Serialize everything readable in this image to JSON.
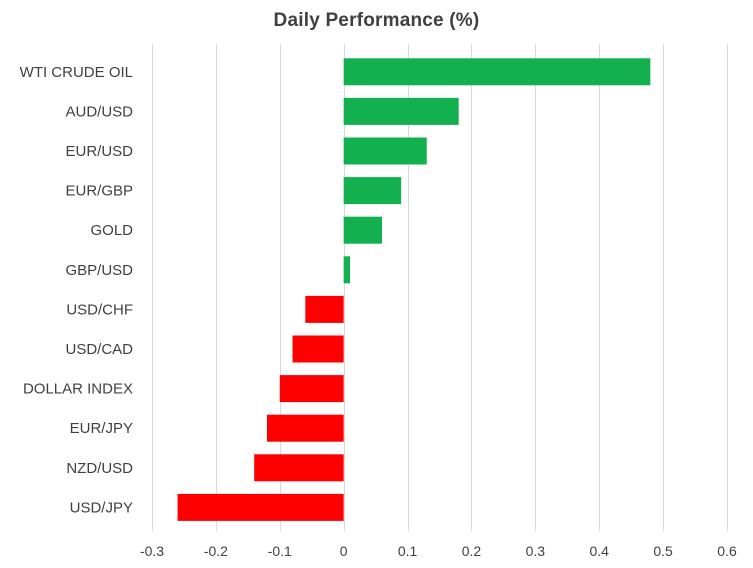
{
  "chart_data": {
    "type": "bar",
    "orientation": "horizontal",
    "title": "Daily Performance  (%)",
    "xlabel": "",
    "ylabel": "",
    "categories": [
      "WTI CRUDE OIL",
      "AUD/USD",
      "EUR/USD",
      "EUR/GBP",
      "GOLD",
      "GBP/USD",
      "USD/CHF",
      "USD/CAD",
      "DOLLAR INDEX",
      "EUR/JPY",
      "NZD/USD",
      "USD/JPY"
    ],
    "values": [
      0.48,
      0.18,
      0.13,
      0.09,
      0.06,
      0.01,
      -0.06,
      -0.08,
      -0.1,
      -0.12,
      -0.14,
      -0.26
    ],
    "xlim": [
      -0.3,
      0.6
    ],
    "xticks": [
      -0.3,
      -0.2,
      -0.1,
      0,
      0.1,
      0.2,
      0.3,
      0.4,
      0.5,
      0.6
    ],
    "xtick_labels": [
      "-0.3",
      "-0.2",
      "-0.1",
      "0",
      "0.1",
      "0.2",
      "0.3",
      "0.4",
      "0.5",
      "0.6"
    ],
    "grid": true,
    "legend": "none",
    "colors": {
      "positive": "#12B04F",
      "negative": "#FF0000",
      "grid": "#D9D9D9",
      "text": "#404040"
    }
  }
}
